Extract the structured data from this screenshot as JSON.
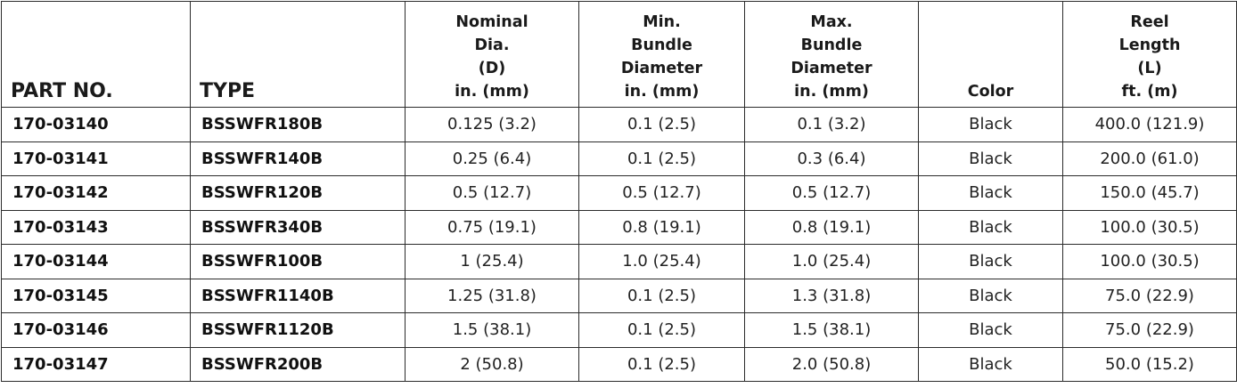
{
  "table": {
    "headers": [
      "PART NO.",
      "TYPE",
      "Nominal\nDia.\n(D)\nin. (mm)",
      "Min.\nBundle\nDiameter\nin. (mm)",
      "Max.\nBundle\nDiameter\nin. (mm)",
      "Color",
      "Reel\nLength\n(L)\nft. (m)"
    ],
    "rows": [
      [
        "170-03140",
        "BSSWFR180B",
        "0.125 (3.2)",
        "0.1 (2.5)",
        "0.1 (3.2)",
        "Black",
        "400.0 (121.9)"
      ],
      [
        "170-03141",
        "BSSWFR140B",
        "0.25 (6.4)",
        "0.1 (2.5)",
        "0.3 (6.4)",
        "Black",
        "200.0 (61.0)"
      ],
      [
        "170-03142",
        "BSSWFR120B",
        "0.5 (12.7)",
        "0.5 (12.7)",
        "0.5 (12.7)",
        "Black",
        "150.0 (45.7)"
      ],
      [
        "170-03143",
        "BSSWFR340B",
        "0.75 (19.1)",
        "0.8 (19.1)",
        "0.8 (19.1)",
        "Black",
        "100.0 (30.5)"
      ],
      [
        "170-03144",
        "BSSWFR100B",
        "1 (25.4)",
        "1.0 (25.4)",
        "1.0 (25.4)",
        "Black",
        "100.0 (30.5)"
      ],
      [
        "170-03145",
        "BSSWFR1140B",
        "1.25 (31.8)",
        "0.1 (2.5)",
        "1.3 (31.8)",
        "Black",
        "75.0 (22.9)"
      ],
      [
        "170-03146",
        "BSSWFR1120B",
        "1.5 (38.1)",
        "0.1 (2.5)",
        "1.5 (38.1)",
        "Black",
        "75.0 (22.9)"
      ],
      [
        "170-03147",
        "BSSWFR200B",
        "2 (50.8)",
        "0.1 (2.5)",
        "2.0 (50.8)",
        "Black",
        "50.0 (15.2)"
      ]
    ]
  }
}
